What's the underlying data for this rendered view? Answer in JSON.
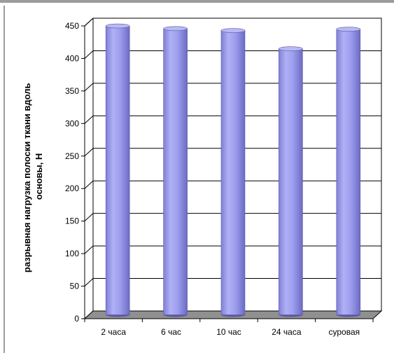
{
  "chart_data": {
    "type": "bar",
    "title": "",
    "xlabel": "",
    "ylabel_lines": [
      "разрывная нагрузка полоски ткани вдоль",
      "основы, Н"
    ],
    "categories": [
      "2 часа",
      "6 час",
      "10 час",
      "24 часа",
      "суровая"
    ],
    "values": [
      444,
      440,
      437,
      409,
      439
    ],
    "ylim": [
      0,
      450
    ],
    "yticks": [
      0,
      50,
      100,
      150,
      200,
      250,
      300,
      350,
      400,
      450
    ],
    "grid": true,
    "legend": "none",
    "colors": {
      "bar_front": "#9999ee",
      "bar_top": "#b9b9f5",
      "bar_edge": "#5a5aa0",
      "floor": "#909090"
    }
  }
}
